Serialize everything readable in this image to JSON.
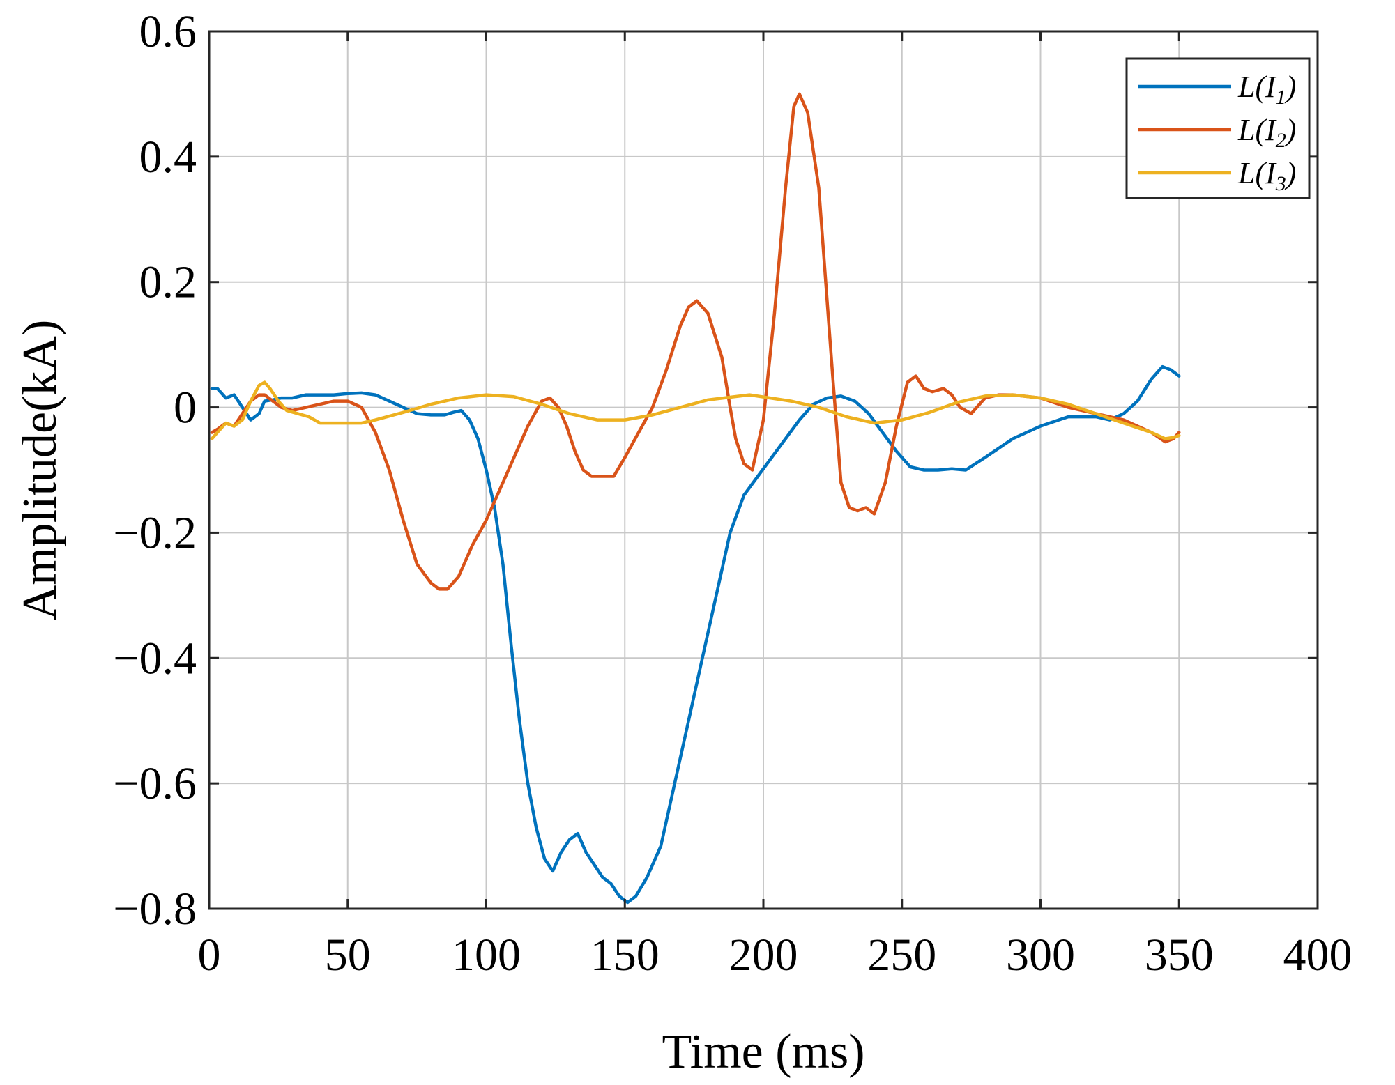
{
  "chart_data": {
    "type": "line",
    "title": "",
    "xlabel": "Time (ms)",
    "ylabel": "Amplitude(kA)",
    "xlim": [
      0,
      400
    ],
    "ylim": [
      -0.8,
      0.6
    ],
    "xticks": [
      0,
      50,
      100,
      150,
      200,
      250,
      300,
      350,
      400
    ],
    "xtick_labels": [
      "0",
      "50",
      "100",
      "150",
      "200",
      "250",
      "300",
      "350",
      "400"
    ],
    "yticks": [
      -0.8,
      -0.6,
      -0.4,
      -0.2,
      0,
      0.2,
      0.4,
      0.6
    ],
    "ytick_labels": [
      "−0.8",
      "−0.6",
      "−0.4",
      "−0.2",
      "0",
      "0.2",
      "0.4",
      "0.6"
    ],
    "grid": true,
    "legend_position": "top-right",
    "series": [
      {
        "name": "L(I1)",
        "label_main": "L(I",
        "label_sub": "1",
        "label_close": ")",
        "color": "#0072BD",
        "x": [
          1,
          3,
          6,
          9,
          12,
          15,
          18,
          20,
          23,
          26,
          30,
          35,
          40,
          45,
          50,
          55,
          60,
          65,
          70,
          75,
          80,
          85,
          88,
          91,
          94,
          97,
          100,
          103,
          106,
          109,
          112,
          115,
          118,
          121,
          124,
          127,
          130,
          133,
          136,
          139,
          142,
          145,
          148,
          151,
          154,
          158,
          163,
          168,
          173,
          178,
          183,
          188,
          193,
          198,
          203,
          208,
          213,
          218,
          223,
          228,
          233,
          238,
          243,
          248,
          253,
          258,
          263,
          268,
          273,
          280,
          290,
          300,
          310,
          320,
          325,
          330,
          335,
          340,
          344,
          347,
          350
        ],
        "y": [
          0.03,
          0.03,
          0.015,
          0.02,
          0.0,
          -0.02,
          -0.01,
          0.01,
          0.012,
          0.015,
          0.015,
          0.02,
          0.02,
          0.02,
          0.022,
          0.023,
          0.02,
          0.01,
          0.0,
          -0.01,
          -0.012,
          -0.012,
          -0.008,
          -0.005,
          -0.02,
          -0.05,
          -0.1,
          -0.16,
          -0.25,
          -0.38,
          -0.5,
          -0.6,
          -0.67,
          -0.72,
          -0.74,
          -0.71,
          -0.69,
          -0.68,
          -0.71,
          -0.73,
          -0.75,
          -0.76,
          -0.78,
          -0.79,
          -0.78,
          -0.75,
          -0.7,
          -0.6,
          -0.5,
          -0.4,
          -0.3,
          -0.2,
          -0.14,
          -0.11,
          -0.08,
          -0.05,
          -0.02,
          0.005,
          0.015,
          0.018,
          0.01,
          -0.01,
          -0.04,
          -0.07,
          -0.095,
          -0.1,
          -0.1,
          -0.098,
          -0.1,
          -0.08,
          -0.05,
          -0.03,
          -0.015,
          -0.015,
          -0.02,
          -0.01,
          0.01,
          0.045,
          0.065,
          0.06,
          0.05
        ]
      },
      {
        "name": "L(I2)",
        "label_main": "L(I",
        "label_sub": "2",
        "label_close": ")",
        "color": "#D95319",
        "x": [
          1,
          3,
          6,
          9,
          12,
          15,
          18,
          20,
          23,
          26,
          30,
          35,
          40,
          45,
          50,
          55,
          60,
          65,
          70,
          75,
          80,
          83,
          86,
          90,
          95,
          100,
          105,
          110,
          115,
          120,
          123,
          126,
          129,
          132,
          135,
          138,
          142,
          146,
          150,
          155,
          160,
          165,
          170,
          173,
          176,
          180,
          185,
          188,
          190,
          193,
          196,
          200,
          204,
          208,
          211,
          213,
          216,
          220,
          225,
          228,
          231,
          234,
          237,
          240,
          244,
          248,
          252,
          255,
          258,
          261,
          265,
          268,
          271,
          275,
          280,
          285,
          290,
          300,
          310,
          320,
          330,
          340,
          345,
          348,
          350
        ],
        "y": [
          -0.04,
          -0.035,
          -0.025,
          -0.03,
          -0.01,
          0.01,
          0.02,
          0.02,
          0.01,
          0.0,
          -0.005,
          0.0,
          0.005,
          0.01,
          0.01,
          0.0,
          -0.04,
          -0.1,
          -0.18,
          -0.25,
          -0.28,
          -0.29,
          -0.29,
          -0.27,
          -0.22,
          -0.18,
          -0.13,
          -0.08,
          -0.03,
          0.01,
          0.015,
          0.0,
          -0.03,
          -0.07,
          -0.1,
          -0.11,
          -0.11,
          -0.11,
          -0.08,
          -0.04,
          0.0,
          0.06,
          0.13,
          0.16,
          0.17,
          0.15,
          0.08,
          0.0,
          -0.05,
          -0.09,
          -0.1,
          -0.02,
          0.15,
          0.35,
          0.48,
          0.5,
          0.47,
          0.35,
          0.05,
          -0.12,
          -0.16,
          -0.165,
          -0.16,
          -0.17,
          -0.12,
          -0.03,
          0.04,
          0.05,
          0.03,
          0.025,
          0.03,
          0.02,
          0.0,
          -0.01,
          0.015,
          0.02,
          0.02,
          0.015,
          0.0,
          -0.01,
          -0.02,
          -0.04,
          -0.055,
          -0.05,
          -0.04
        ]
      },
      {
        "name": "L(I3)",
        "label_main": "L(I",
        "label_sub": "3",
        "label_close": ")",
        "color": "#EDB120",
        "x": [
          1,
          3,
          6,
          9,
          12,
          15,
          18,
          20,
          22,
          25,
          28,
          32,
          36,
          40,
          45,
          50,
          55,
          60,
          70,
          80,
          90,
          100,
          110,
          120,
          130,
          140,
          150,
          160,
          170,
          180,
          195,
          210,
          220,
          230,
          240,
          250,
          260,
          270,
          280,
          290,
          300,
          310,
          320,
          330,
          340,
          345,
          348,
          350
        ],
        "y": [
          -0.05,
          -0.04,
          -0.025,
          -0.03,
          -0.02,
          0.01,
          0.035,
          0.04,
          0.03,
          0.01,
          -0.005,
          -0.01,
          -0.015,
          -0.025,
          -0.025,
          -0.025,
          -0.025,
          -0.02,
          -0.008,
          0.005,
          0.015,
          0.02,
          0.017,
          0.005,
          -0.01,
          -0.02,
          -0.02,
          -0.012,
          0.0,
          0.012,
          0.02,
          0.01,
          0.0,
          -0.015,
          -0.025,
          -0.02,
          -0.008,
          0.008,
          0.018,
          0.02,
          0.015,
          0.005,
          -0.01,
          -0.025,
          -0.04,
          -0.05,
          -0.048,
          -0.045
        ]
      }
    ]
  }
}
